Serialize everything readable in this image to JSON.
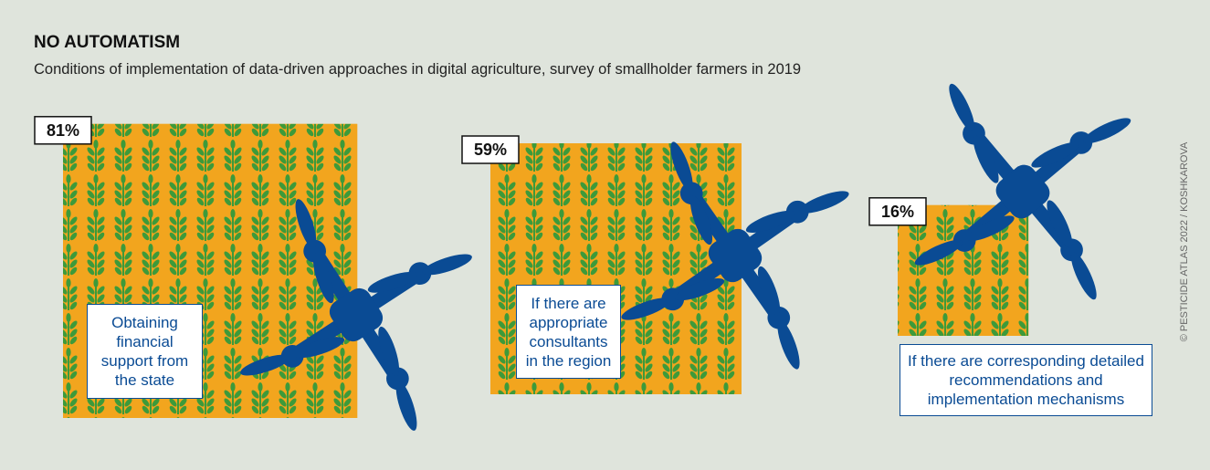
{
  "chart_data": {
    "type": "square",
    "title": "NO AUTOMATISM",
    "subtitle": "Conditions of implementation of data-driven approaches in digital agriculture, survey of smallholder farmers in 2019",
    "categories": [
      "Obtaining financial support from the state",
      "If there are appropriate consultants in the region",
      "If there are corresponding detailed recommendations and implementation mechanisms"
    ],
    "values": [
      81,
      59,
      16
    ],
    "value_labels": [
      "81%",
      "59%",
      "16%"
    ],
    "color": "#f2a51e",
    "credit": "© PESTICIDE ATLAS 2022 / KOSHKAROVA"
  }
}
